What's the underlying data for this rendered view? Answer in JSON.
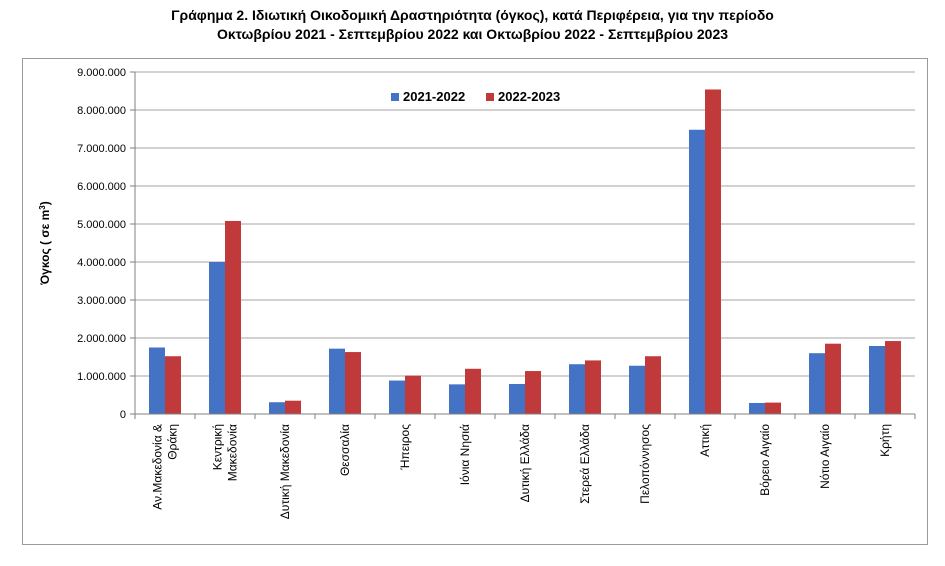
{
  "title_line1": "Γράφημα 2.  Ιδιωτική Οικοδομική Δραστηριότητα (όγκος), κατά Περιφέρεια, για την περίοδο",
  "title_line2": "Οκτωβρίου 2021 - Σεπτεμβρίου 2022 και Οκτωβρίου 2022 - Σεπτεμβρίου 2023",
  "colors": {
    "series1": "#4472C4",
    "series2": "#C0393B",
    "grid": "#A6A6A6",
    "axis": "#808080"
  },
  "chart_data": {
    "type": "bar",
    "ylabel": "Όγκος ( σε m",
    "ylabel_sup": "3",
    "ylabel_close": ")",
    "ylim": [
      0,
      9000000
    ],
    "yticks": [
      0,
      1000000,
      2000000,
      3000000,
      4000000,
      5000000,
      6000000,
      7000000,
      8000000,
      9000000
    ],
    "ytick_labels": [
      "0",
      "1.000.000",
      "2.000.000",
      "3.000.000",
      "4.000.000",
      "5.000.000",
      "6.000.000",
      "7.000.000",
      "8.000.000",
      "9.000.000"
    ],
    "grid": true,
    "legend_position": "top",
    "categories": [
      [
        "Αν.Μακεδονία &",
        "Θράκη"
      ],
      [
        "Κεντρική",
        "Μακεδονία"
      ],
      [
        "Δυτική Μακεδονία"
      ],
      [
        "Θεσσαλία"
      ],
      [
        "Ήπειρος"
      ],
      [
        "Ιόνια Νησιά"
      ],
      [
        "Δυτική Ελλάδα"
      ],
      [
        "Στερεά Ελλάδα"
      ],
      [
        "Πελοπόννησος"
      ],
      [
        "Αττική"
      ],
      [
        "Βόρειο Αιγαίο"
      ],
      [
        "Νότιο Αιγαίο"
      ],
      [
        "Κρήτη"
      ]
    ],
    "series": [
      {
        "name": "2021-2022",
        "values": [
          1750000,
          4000000,
          310000,
          1720000,
          880000,
          780000,
          790000,
          1310000,
          1270000,
          7480000,
          290000,
          1600000,
          1790000
        ]
      },
      {
        "name": "2022-2023",
        "values": [
          1520000,
          5080000,
          350000,
          1630000,
          1010000,
          1190000,
          1130000,
          1410000,
          1520000,
          8540000,
          300000,
          1850000,
          1920000
        ]
      }
    ]
  }
}
